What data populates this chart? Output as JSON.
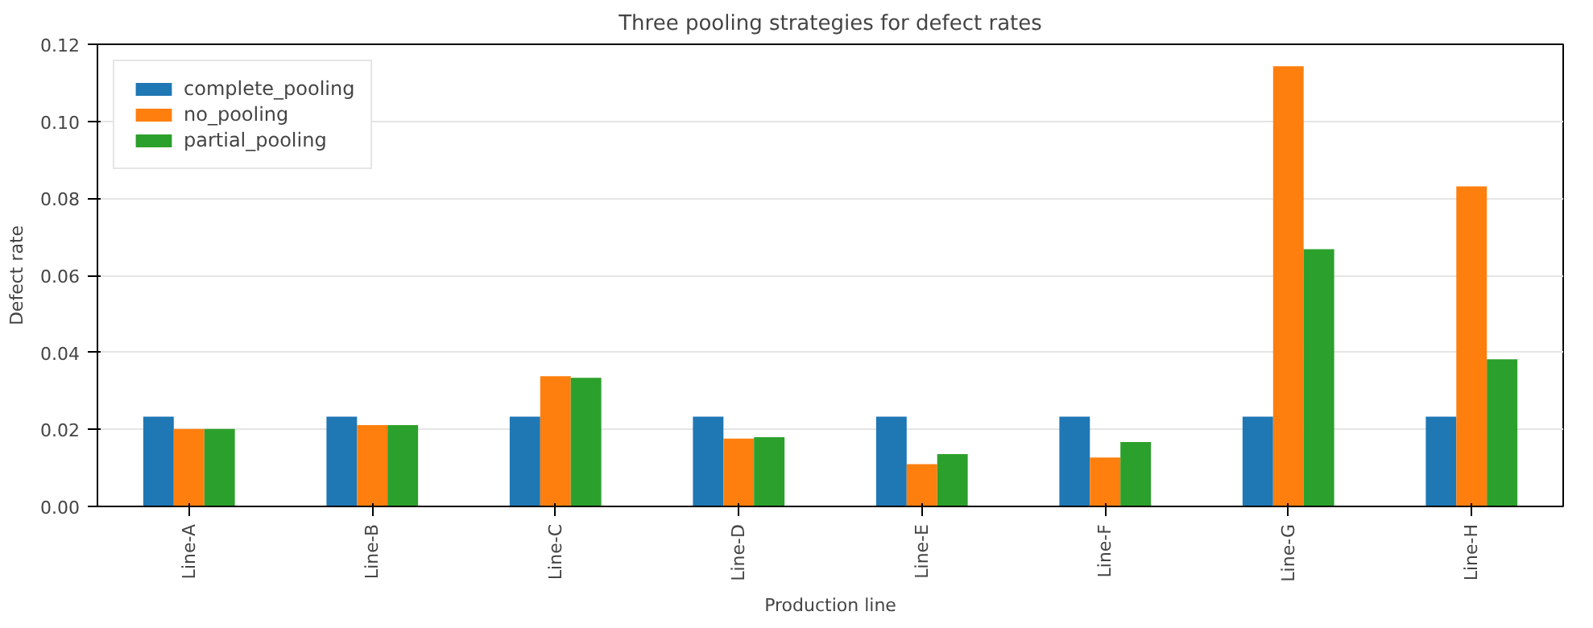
{
  "chart_data": {
    "type": "bar",
    "title": "Three pooling strategies for defect rates",
    "xlabel": "Production line",
    "ylabel": "Defect rate",
    "categories": [
      "Line-A",
      "Line-B",
      "Line-C",
      "Line-D",
      "Line-E",
      "Line-F",
      "Line-G",
      "Line-H"
    ],
    "series": [
      {
        "name": "complete_pooling",
        "color": "#1f77b4",
        "values": [
          0.0233,
          0.0233,
          0.0233,
          0.0233,
          0.0233,
          0.0233,
          0.0233,
          0.0233
        ]
      },
      {
        "name": "no_pooling",
        "color": "#ff7f0e",
        "values": [
          0.0201,
          0.0211,
          0.0338,
          0.0176,
          0.011,
          0.0127,
          0.1143,
          0.0831
        ]
      },
      {
        "name": "partial_pooling",
        "color": "#2ca02c",
        "values": [
          0.0201,
          0.0211,
          0.0334,
          0.018,
          0.0136,
          0.0167,
          0.0668,
          0.0382
        ]
      }
    ],
    "ylim": [
      0,
      0.12
    ],
    "yticks": [
      {
        "value": 0,
        "label": "0.00"
      },
      {
        "value": 0.02,
        "label": "0.02"
      },
      {
        "value": 0.04,
        "label": "0.04"
      },
      {
        "value": 0.06,
        "label": "0.06"
      },
      {
        "value": 0.08,
        "label": "0.08"
      },
      {
        "value": 0.1,
        "label": "0.10"
      },
      {
        "value": 0.12,
        "label": "0.12"
      }
    ],
    "grid": "y",
    "legend": "top left"
  }
}
